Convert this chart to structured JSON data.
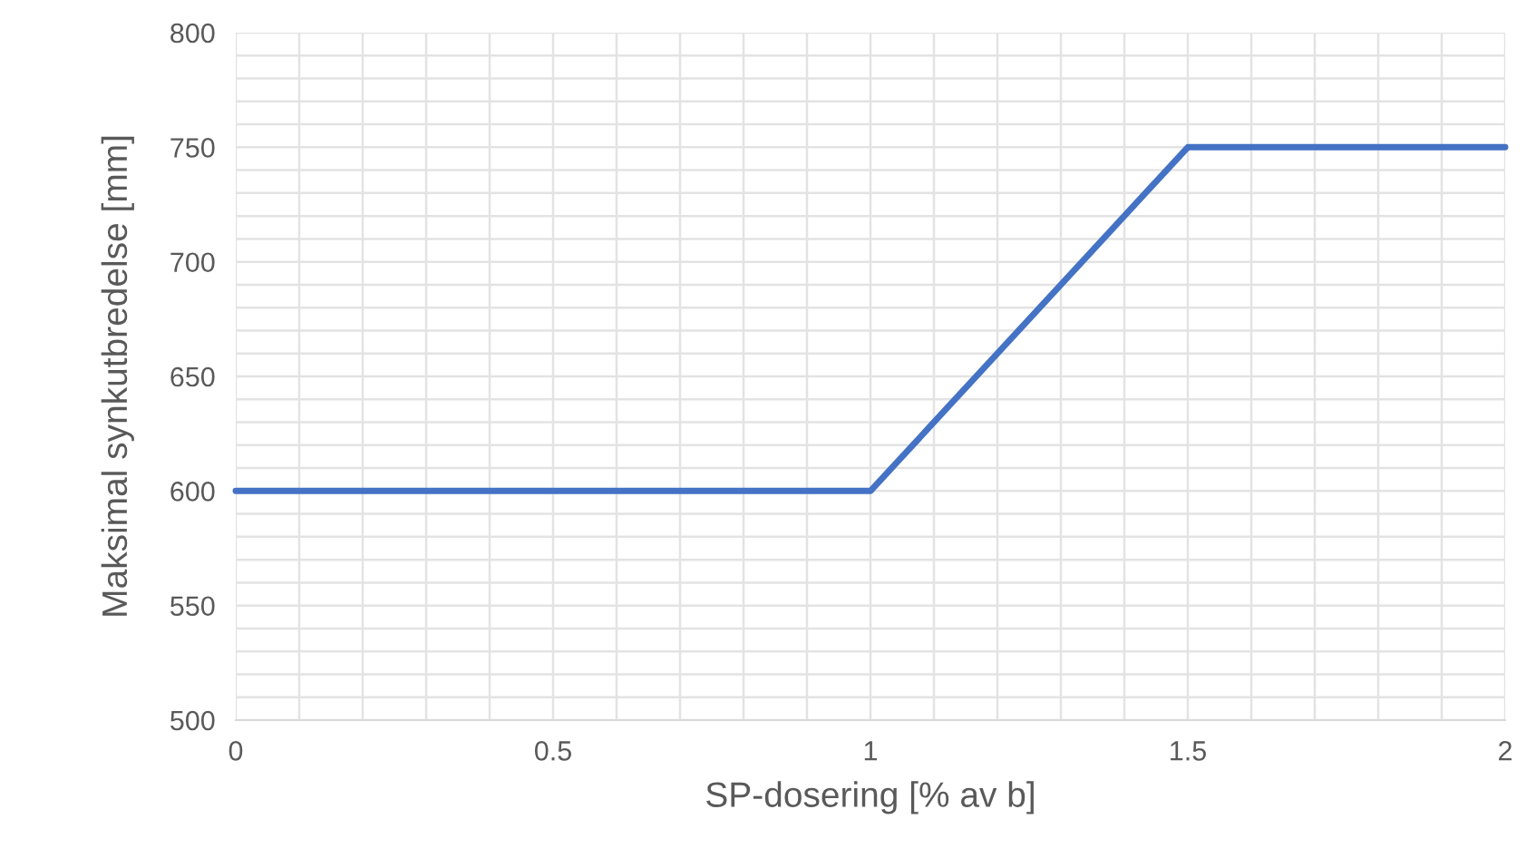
{
  "chart_data": {
    "type": "line",
    "xlabel": "SP-dosering [% av b]",
    "ylabel": "Maksimal synkutbredelse [mm]",
    "x": [
      0,
      1,
      1.5,
      2
    ],
    "series": [
      {
        "color": "#4472c4",
        "values": [
          600,
          600,
          750,
          750
        ]
      }
    ],
    "xlim": [
      0,
      2
    ],
    "xticks": [
      0,
      0.5,
      1,
      1.5,
      2
    ],
    "ylim": [
      500,
      800
    ],
    "yticks": [
      500,
      550,
      600,
      650,
      700,
      750,
      800
    ],
    "grid": true,
    "marker": "none",
    "line_style": "solid",
    "legend": false
  }
}
